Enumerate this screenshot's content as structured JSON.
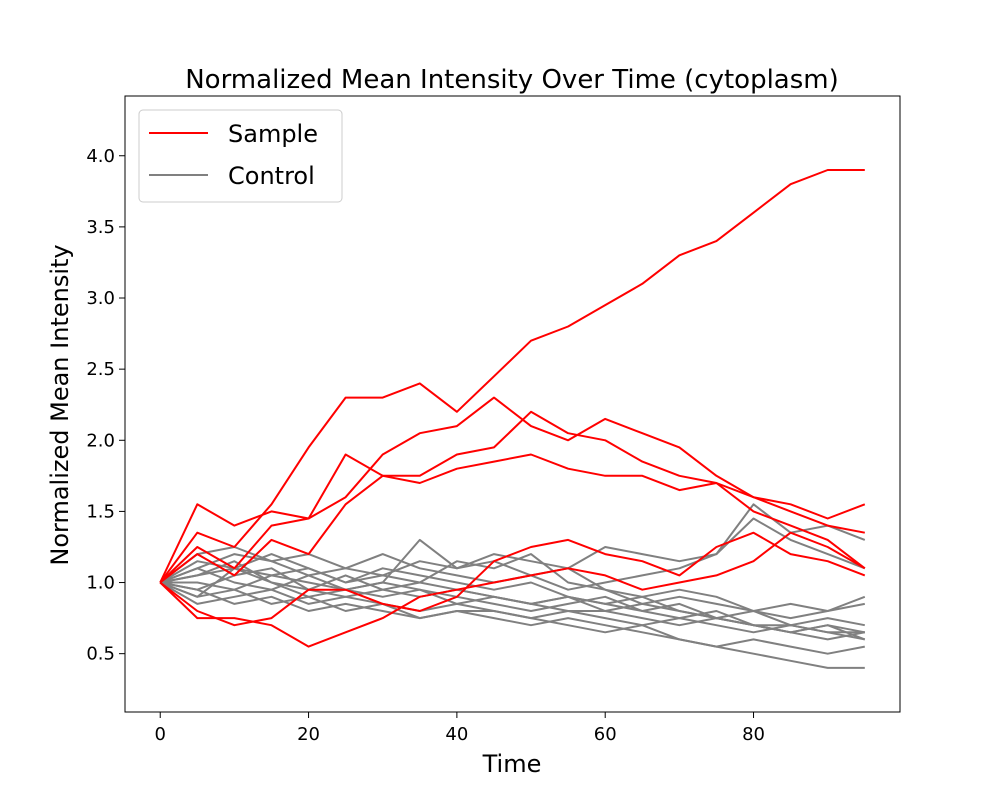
{
  "chart_data": {
    "type": "line",
    "title": "Normalized Mean Intensity Over Time (cytoplasm)",
    "xlabel": "Time",
    "ylabel": "Normalized Mean Intensity",
    "xlim": [
      -4.75,
      99.75
    ],
    "ylim": [
      0.09,
      4.42
    ],
    "x_ticks": [
      0,
      20,
      40,
      60,
      80
    ],
    "y_ticks": [
      0.5,
      1.0,
      1.5,
      2.0,
      2.5,
      3.0,
      3.5,
      4.0
    ],
    "x_tick_labels": [
      "0",
      "20",
      "40",
      "60",
      "80"
    ],
    "y_tick_labels": [
      "0.5",
      "1.0",
      "1.5",
      "2.0",
      "2.5",
      "3.0",
      "3.5",
      "4.0"
    ],
    "grid": false,
    "legend_position": "top-left",
    "legend": [
      {
        "label": "Sample",
        "color": "#ff0000"
      },
      {
        "label": "Control",
        "color": "#808080"
      }
    ],
    "x": [
      0,
      5,
      10,
      15,
      20,
      25,
      30,
      35,
      40,
      45,
      50,
      55,
      60,
      65,
      70,
      75,
      80,
      85,
      90,
      95
    ],
    "series": [
      {
        "group": "Sample",
        "color": "#ff0000",
        "values": [
          1.0,
          1.35,
          1.25,
          1.55,
          1.95,
          2.3,
          2.3,
          2.4,
          2.2,
          2.45,
          2.7,
          2.8,
          2.95,
          3.1,
          3.3,
          3.4,
          3.6,
          3.8,
          3.9,
          3.9
        ]
      },
      {
        "group": "Sample",
        "color": "#ff0000",
        "values": [
          1.0,
          1.55,
          1.4,
          1.5,
          1.45,
          1.6,
          1.9,
          2.05,
          2.1,
          2.3,
          2.1,
          2.0,
          2.15,
          2.05,
          1.95,
          1.75,
          1.6,
          1.55,
          1.45,
          1.55
        ]
      },
      {
        "group": "Sample",
        "color": "#ff0000",
        "values": [
          1.0,
          1.2,
          1.05,
          1.3,
          1.2,
          1.55,
          1.75,
          1.7,
          1.8,
          1.85,
          1.9,
          1.8,
          1.75,
          1.75,
          1.65,
          1.7,
          1.5,
          1.4,
          1.3,
          1.1
        ]
      },
      {
        "group": "Sample",
        "color": "#ff0000",
        "values": [
          1.0,
          1.25,
          1.1,
          1.4,
          1.45,
          1.9,
          1.75,
          1.75,
          1.9,
          1.95,
          2.2,
          2.05,
          2.0,
          1.85,
          1.75,
          1.7,
          1.6,
          1.5,
          1.4,
          1.35
        ]
      },
      {
        "group": "Sample",
        "color": "#ff0000",
        "values": [
          1.0,
          0.75,
          0.75,
          0.7,
          0.55,
          0.65,
          0.75,
          0.9,
          0.95,
          1.0,
          1.05,
          1.1,
          1.05,
          0.95,
          1.0,
          1.05,
          1.15,
          1.35,
          1.25,
          1.1
        ]
      },
      {
        "group": "Sample",
        "color": "#ff0000",
        "values": [
          1.0,
          0.8,
          0.7,
          0.75,
          0.95,
          0.95,
          0.85,
          0.8,
          0.9,
          1.15,
          1.25,
          1.3,
          1.2,
          1.15,
          1.05,
          1.25,
          1.35,
          1.2,
          1.15,
          1.05
        ]
      },
      {
        "group": "Control",
        "color": "#808080",
        "values": [
          1.0,
          1.1,
          1.2,
          1.15,
          1.2,
          1.1,
          1.05,
          1.15,
          1.1,
          1.2,
          1.15,
          1.1,
          1.25,
          1.2,
          1.15,
          1.2,
          1.45,
          1.3,
          1.2,
          1.1
        ]
      },
      {
        "group": "Control",
        "color": "#808080",
        "values": [
          1.0,
          1.05,
          1.15,
          1.0,
          0.9,
          0.95,
          1.0,
          1.3,
          1.1,
          1.15,
          1.05,
          0.95,
          1.0,
          1.05,
          1.1,
          1.2,
          1.55,
          1.35,
          1.4,
          1.3
        ]
      },
      {
        "group": "Control",
        "color": "#808080",
        "values": [
          1.0,
          0.9,
          1.1,
          1.05,
          1.1,
          1.0,
          1.05,
          1.0,
          1.15,
          1.1,
          1.2,
          1.0,
          0.95,
          0.9,
          0.95,
          0.9,
          0.8,
          0.85,
          0.8,
          0.85
        ]
      },
      {
        "group": "Control",
        "color": "#808080",
        "values": [
          1.0,
          1.2,
          1.25,
          1.15,
          1.05,
          1.1,
          1.2,
          1.1,
          1.05,
          1.0,
          1.05,
          1.1,
          0.95,
          0.85,
          0.9,
          0.85,
          0.8,
          0.75,
          0.8,
          0.9
        ]
      },
      {
        "group": "Control",
        "color": "#808080",
        "values": [
          1.0,
          0.95,
          1.05,
          1.1,
          0.95,
          0.9,
          0.95,
          1.0,
          0.95,
          0.9,
          0.85,
          0.9,
          0.85,
          0.8,
          0.85,
          0.75,
          0.8,
          0.7,
          0.75,
          0.7
        ]
      },
      {
        "group": "Control",
        "color": "#808080",
        "values": [
          1.0,
          1.0,
          0.95,
          1.05,
          1.0,
          0.95,
          1.0,
          0.95,
          0.9,
          0.85,
          0.8,
          0.85,
          0.9,
          0.8,
          0.75,
          0.8,
          0.7,
          0.65,
          0.7,
          0.65
        ]
      },
      {
        "group": "Control",
        "color": "#808080",
        "values": [
          1.0,
          0.85,
          0.9,
          0.95,
          0.85,
          0.9,
          0.85,
          0.8,
          0.85,
          0.8,
          0.75,
          0.8,
          0.75,
          0.7,
          0.75,
          0.7,
          0.65,
          0.7,
          0.65,
          0.6
        ]
      },
      {
        "group": "Control",
        "color": "#808080",
        "values": [
          1.0,
          1.1,
          1.0,
          0.95,
          1.05,
          0.95,
          0.9,
          0.95,
          0.85,
          0.9,
          0.85,
          0.8,
          0.8,
          0.75,
          0.7,
          0.75,
          0.7,
          0.65,
          0.6,
          0.65
        ]
      },
      {
        "group": "Control",
        "color": "#808080",
        "values": [
          1.0,
          0.95,
          0.85,
          0.9,
          0.8,
          0.85,
          0.8,
          0.75,
          0.8,
          0.75,
          0.7,
          0.75,
          0.7,
          0.65,
          0.6,
          0.55,
          0.5,
          0.45,
          0.4,
          0.4
        ]
      },
      {
        "group": "Control",
        "color": "#808080",
        "values": [
          1.0,
          1.15,
          1.1,
          1.2,
          1.1,
          1.0,
          1.1,
          1.05,
          1.0,
          0.95,
          1.0,
          0.9,
          0.85,
          0.9,
          0.8,
          0.75,
          0.7,
          0.7,
          0.65,
          0.65
        ]
      },
      {
        "group": "Control",
        "color": "#808080",
        "values": [
          1.0,
          0.9,
          0.95,
          0.85,
          0.9,
          0.8,
          0.85,
          0.75,
          0.8,
          0.8,
          0.75,
          0.7,
          0.65,
          0.7,
          0.6,
          0.55,
          0.6,
          0.55,
          0.5,
          0.55
        ]
      },
      {
        "group": "Control",
        "color": "#808080",
        "values": [
          1.0,
          1.05,
          1.1,
          1.0,
          0.95,
          1.05,
          0.95,
          0.9,
          0.95,
          0.9,
          0.85,
          0.9,
          0.8,
          0.85,
          0.8,
          0.75,
          0.7,
          0.65,
          0.7,
          0.6
        ]
      }
    ]
  }
}
